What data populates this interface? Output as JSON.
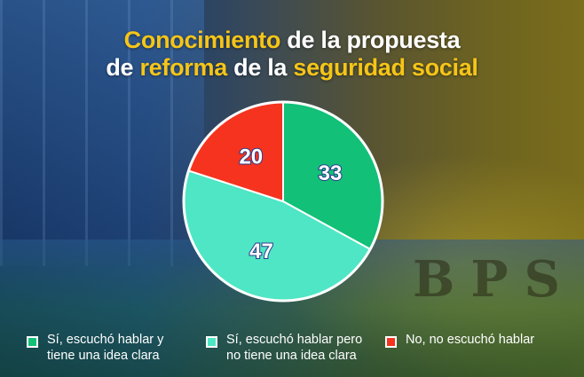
{
  "title": {
    "line1_highlight": "Conocimiento",
    "line1_rest": " de la propuesta",
    "line2_prefix": "de ",
    "line2_highlight1": "reforma",
    "line2_mid": " de la ",
    "line2_highlight2": "seguridad social"
  },
  "background": {
    "sign_letters": "BPS"
  },
  "colors": {
    "highlight": "#f5c518",
    "slice_aware_clear": "#12c078",
    "slice_aware_unclear": "#4ee6c4",
    "slice_not_aware": "#f5331e"
  },
  "chart_data": {
    "type": "pie",
    "title": "Conocimiento de la propuesta de reforma de la seguridad social",
    "slices": [
      {
        "label": "Sí, escuchó hablar y tiene una idea clara",
        "value": 33,
        "color": "#12c078"
      },
      {
        "label": "Sí, escuchó hablar pero no tiene una idea clara",
        "value": 47,
        "color": "#4ee6c4"
      },
      {
        "label": "No, no escuchó hablar",
        "value": 20,
        "color": "#f5331e"
      }
    ],
    "legend_position": "bottom"
  },
  "legend": {
    "items": [
      {
        "line1": "Sí, escuchó hablar y",
        "line2": "tiene una idea clara"
      },
      {
        "line1": "Sí, escuchó hablar pero",
        "line2": "no tiene una idea clara"
      },
      {
        "line1": "No, no escuchó hablar",
        "line2": ""
      }
    ]
  }
}
